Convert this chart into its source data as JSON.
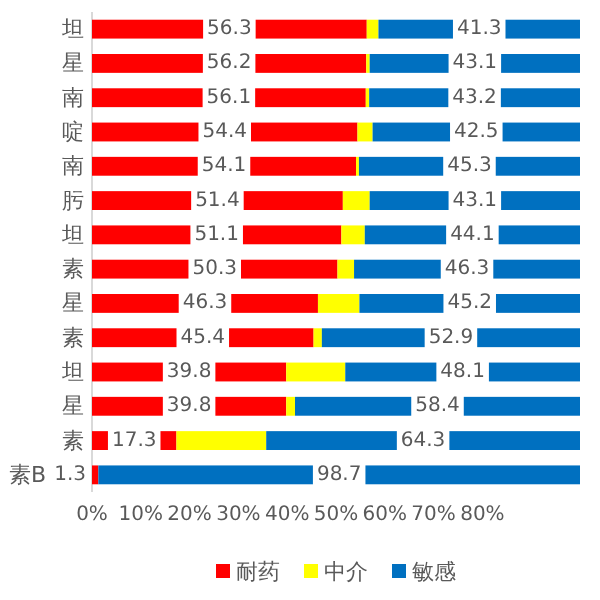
{
  "chart_data": {
    "type": "bar",
    "orientation": "horizontal",
    "stacked": true,
    "categories": [
      "坦",
      "星",
      "南",
      "啶",
      "南",
      "肟",
      "坦",
      "素",
      "星",
      "素",
      "坦",
      "星",
      "素",
      "素B"
    ],
    "series": [
      {
        "name": "耐药",
        "color": "#ff0000",
        "values": [
          56.3,
          56.2,
          56.1,
          54.4,
          54.1,
          51.4,
          51.1,
          50.3,
          46.3,
          45.4,
          39.8,
          39.8,
          17.3,
          1.3
        ],
        "value_labels": [
          "56.3",
          "56.2",
          "56.1",
          "54.4",
          "54.1",
          "51.4",
          "51.1",
          "50.3",
          "46.3",
          "45.4",
          "39.8",
          "39.8",
          "17.3",
          "1.3"
        ]
      },
      {
        "name": "中介",
        "color": "#ffff00",
        "values": [
          2.4,
          0.7,
          0.7,
          3.1,
          0.6,
          5.5,
          4.8,
          3.4,
          8.5,
          1.7,
          12.1,
          1.8,
          18.4,
          0
        ]
      },
      {
        "name": "敏感",
        "color": "#0070c0",
        "values": [
          41.3,
          43.1,
          43.2,
          42.5,
          45.3,
          43.1,
          44.1,
          46.3,
          45.2,
          52.9,
          48.1,
          58.4,
          64.3,
          98.7
        ],
        "value_labels": [
          "41.3",
          "43.1",
          "43.2",
          "42.5",
          "45.3",
          "43.1",
          "44.1",
          "46.3",
          "45.2",
          "52.9",
          "48.1",
          "58.4",
          "64.3",
          "98.7"
        ]
      }
    ],
    "xlim": [
      0,
      100
    ],
    "xticks": [
      {
        "value": 0,
        "label": "0%"
      },
      {
        "value": 10,
        "label": "10%"
      },
      {
        "value": 20,
        "label": "20%"
      },
      {
        "value": 30,
        "label": "30%"
      },
      {
        "value": 40,
        "label": "40%"
      },
      {
        "value": 50,
        "label": "50%"
      },
      {
        "value": 60,
        "label": "60%"
      },
      {
        "value": 70,
        "label": "70%"
      },
      {
        "value": 80,
        "label": "80%"
      }
    ],
    "grid": false,
    "legend": "bottom"
  }
}
